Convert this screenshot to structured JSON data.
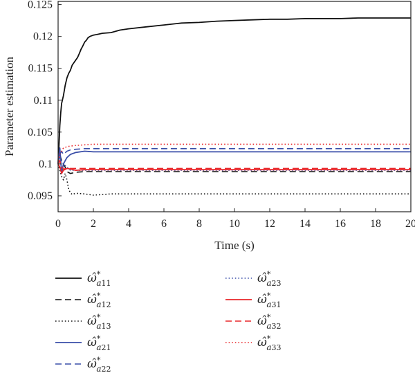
{
  "chart_data": {
    "type": "line",
    "title": "",
    "xlabel": "Time (s)",
    "ylabel": "Parameter estimation",
    "xlim": [
      0,
      20
    ],
    "ylim": [
      0.0925,
      0.1255
    ],
    "xticks": [
      0,
      2,
      4,
      6,
      8,
      10,
      12,
      14,
      16,
      18,
      20
    ],
    "yticks": [
      0.095,
      0.1,
      0.105,
      0.11,
      0.115,
      0.12,
      0.125
    ],
    "ytick_labels": [
      "0.095",
      "0.1",
      "0.105",
      "0.11",
      "0.115",
      "0.12",
      "0.125"
    ],
    "grid": false,
    "legend_position": "below",
    "colors": {
      "black": "#111111",
      "blue": "#3a4ea8",
      "red": "#e8262a"
    },
    "series": [
      {
        "name": "ω̂*a11",
        "hat": "ω̂",
        "sup": "*",
        "sub_a": "a",
        "sub_idx": "11",
        "color": "#111111",
        "style": "solid",
        "x": [
          0,
          0.05,
          0.1,
          0.15,
          0.2,
          0.3,
          0.4,
          0.5,
          0.6,
          0.7,
          0.8,
          0.9,
          1.0,
          1.1,
          1.2,
          1.3,
          1.4,
          1.5,
          1.6,
          1.7,
          1.8,
          1.9,
          2.0,
          2.2,
          2.5,
          3.0,
          3.5,
          4.0,
          5.0,
          6.0,
          7.0,
          8.0,
          9.0,
          10.0,
          11.0,
          12.0,
          13.0,
          14.0,
          15.0,
          16.0,
          17.0,
          18.0,
          19.0,
          20.0
        ],
        "y": [
          0.1,
          0.103,
          0.106,
          0.108,
          0.1095,
          0.1107,
          0.1123,
          0.1135,
          0.1142,
          0.1147,
          0.1155,
          0.1159,
          0.1163,
          0.1167,
          0.1173,
          0.118,
          0.1185,
          0.1191,
          0.1194,
          0.1198,
          0.12,
          0.1201,
          0.1202,
          0.1203,
          0.1205,
          0.1206,
          0.121,
          0.1212,
          0.1215,
          0.1218,
          0.1221,
          0.1222,
          0.1224,
          0.1225,
          0.1226,
          0.1227,
          0.1227,
          0.1228,
          0.1228,
          0.1228,
          0.1229,
          0.1229,
          0.1229,
          0.1229
        ]
      },
      {
        "name": "ω̂*a12",
        "hat": "ω̂",
        "sup": "*",
        "sub_a": "a",
        "sub_idx": "12",
        "color": "#111111",
        "style": "dashed",
        "x": [
          0,
          0.1,
          0.2,
          0.3,
          0.4,
          0.5,
          0.7,
          1.0,
          1.5,
          2.0,
          3.0,
          5.0,
          10.0,
          15.0,
          20.0
        ],
        "y": [
          0.1,
          0.1015,
          0.1005,
          0.1,
          0.0995,
          0.0988,
          0.0985,
          0.0987,
          0.0988,
          0.0988,
          0.0988,
          0.0988,
          0.0988,
          0.0988,
          0.0988
        ]
      },
      {
        "name": "ω̂*a13",
        "hat": "ω̂",
        "sup": "*",
        "sub_a": "a",
        "sub_idx": "13",
        "color": "#111111",
        "style": "dotted",
        "x": [
          0,
          0.1,
          0.2,
          0.3,
          0.4,
          0.5,
          0.6,
          0.7,
          0.8,
          1.0,
          1.5,
          2.0,
          3.0,
          5.0,
          10.0,
          15.0,
          20.0
        ],
        "y": [
          0.1,
          0.099,
          0.098,
          0.0975,
          0.0985,
          0.0975,
          0.096,
          0.0955,
          0.0952,
          0.0954,
          0.0953,
          0.0951,
          0.0953,
          0.0953,
          0.0953,
          0.0953,
          0.0953
        ]
      },
      {
        "name": "ω̂*a21",
        "hat": "ω̂",
        "sup": "*",
        "sub_a": "a",
        "sub_idx": "21",
        "color": "#3a4ea8",
        "style": "solid",
        "x": [
          0,
          0.1,
          0.15,
          0.2,
          0.3,
          0.4,
          0.5,
          0.7,
          1.0,
          1.5,
          2.0,
          3.0,
          5.0,
          10.0,
          15.0,
          20.0
        ],
        "y": [
          0.1,
          0.1025,
          0.1005,
          0.0985,
          0.1,
          0.1005,
          0.101,
          0.1015,
          0.1018,
          0.102,
          0.1019,
          0.1019,
          0.1019,
          0.1019,
          0.1019,
          0.1019
        ]
      },
      {
        "name": "ω̂*a22",
        "hat": "ω̂",
        "sup": "*",
        "sub_a": "a",
        "sub_idx": "22",
        "color": "#3a4ea8",
        "style": "dashed",
        "x": [
          0,
          0.1,
          0.2,
          0.3,
          0.5,
          0.7,
          1.0,
          1.5,
          2.0,
          3.0,
          5.0,
          10.0,
          15.0,
          20.0
        ],
        "y": [
          0.1,
          0.1015,
          0.102,
          0.1015,
          0.102,
          0.1022,
          0.1023,
          0.1024,
          0.1024,
          0.1024,
          0.1024,
          0.1024,
          0.1024,
          0.1024
        ]
      },
      {
        "name": "ω̂*a23",
        "hat": "ω̂",
        "sup": "*",
        "sub_a": "a",
        "sub_idx": "23",
        "color": "#3a4ea8",
        "style": "dotted",
        "x": [
          0,
          0.1,
          0.2,
          0.3,
          0.5,
          0.7,
          1.0,
          1.5,
          2.0,
          3.0,
          5.0,
          10.0,
          15.0,
          20.0
        ],
        "y": [
          0.1,
          0.101,
          0.1005,
          0.1,
          0.0995,
          0.099,
          0.099,
          0.099,
          0.099,
          0.099,
          0.099,
          0.099,
          0.099,
          0.099
        ]
      },
      {
        "name": "ω̂*a31",
        "hat": "ω̂",
        "sup": "*",
        "sub_a": "a",
        "sub_idx": "31",
        "color": "#e8262a",
        "style": "solid",
        "x": [
          0,
          0.1,
          0.2,
          0.3,
          0.5,
          0.7,
          1.0,
          1.5,
          2.0,
          3.0,
          5.0,
          10.0,
          15.0,
          20.0
        ],
        "y": [
          0.1,
          0.0995,
          0.0985,
          0.099,
          0.0993,
          0.0992,
          0.099,
          0.0991,
          0.0991,
          0.0991,
          0.0991,
          0.0991,
          0.0991,
          0.0991
        ]
      },
      {
        "name": "ω̂*a32",
        "hat": "ω̂",
        "sup": "*",
        "sub_a": "a",
        "sub_idx": "32",
        "color": "#e8262a",
        "style": "dashed",
        "x": [
          0,
          0.1,
          0.2,
          0.3,
          0.5,
          0.7,
          1.0,
          1.5,
          2.0,
          3.0,
          5.0,
          10.0,
          15.0,
          20.0
        ],
        "y": [
          0.1,
          0.1005,
          0.0995,
          0.0992,
          0.0993,
          0.0993,
          0.0993,
          0.0993,
          0.0993,
          0.0993,
          0.0993,
          0.0993,
          0.0993,
          0.0993
        ]
      },
      {
        "name": "ω̂*a33",
        "hat": "ω̂",
        "sup": "*",
        "sub_a": "a",
        "sub_idx": "33",
        "color": "#e8262a",
        "style": "dotted",
        "x": [
          0,
          0.1,
          0.2,
          0.3,
          0.5,
          0.7,
          1.0,
          1.5,
          2.0,
          3.0,
          5.0,
          10.0,
          15.0,
          20.0
        ],
        "y": [
          0.1,
          0.1015,
          0.102,
          0.1025,
          0.1027,
          0.1028,
          0.1029,
          0.103,
          0.1031,
          0.1031,
          0.1031,
          0.1031,
          0.1031,
          0.1031
        ]
      }
    ]
  }
}
